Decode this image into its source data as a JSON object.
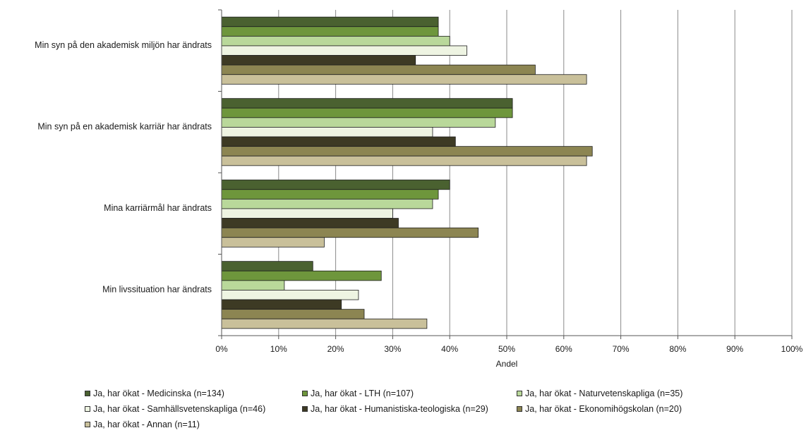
{
  "chart_data": {
    "type": "bar",
    "orientation": "horizontal",
    "categories": [
      "Min syn på den akademisk miljön har ändrats",
      "Min syn på en akademisk karriär har ändrats",
      "Mina karriärmål har ändrats",
      "Min livssituation har ändrats"
    ],
    "series": [
      {
        "name": "Ja, har ökat - Medicinska (n=134)",
        "color": "#4a6130",
        "values": [
          38,
          51,
          40,
          16
        ]
      },
      {
        "name": "Ja, har ökat - LTH (n=107)",
        "color": "#6e963c",
        "values": [
          38,
          51,
          38,
          28
        ]
      },
      {
        "name": "Ja, har ökat - Naturvetenskapliga (n=35)",
        "color": "#b9d89a",
        "values": [
          40,
          48,
          37,
          11
        ]
      },
      {
        "name": "Ja, har ökat - Samhällsvetenskapliga (n=46)",
        "color": "#eef4e2",
        "values": [
          43,
          37,
          30,
          24
        ]
      },
      {
        "name": "Ja, har ökat - Humanistiska-teologiska (n=29)",
        "color": "#3d3a24",
        "values": [
          34,
          41,
          31,
          21
        ]
      },
      {
        "name": "Ja, har ökat - Ekonomihögskolan (n=20)",
        "color": "#8c8552",
        "values": [
          55,
          65,
          45,
          25
        ]
      },
      {
        "name": "Ja, har ökat - Annan (n=11)",
        "color": "#c9c09a",
        "values": [
          64,
          64,
          18,
          36
        ]
      }
    ],
    "xlabel": "Andel",
    "xlim": [
      0,
      100
    ],
    "xticks": [
      "0%",
      "10%",
      "20%",
      "30%",
      "40%",
      "50%",
      "60%",
      "70%",
      "80%",
      "90%",
      "100%"
    ],
    "grid": true,
    "legend_position": "bottom"
  }
}
